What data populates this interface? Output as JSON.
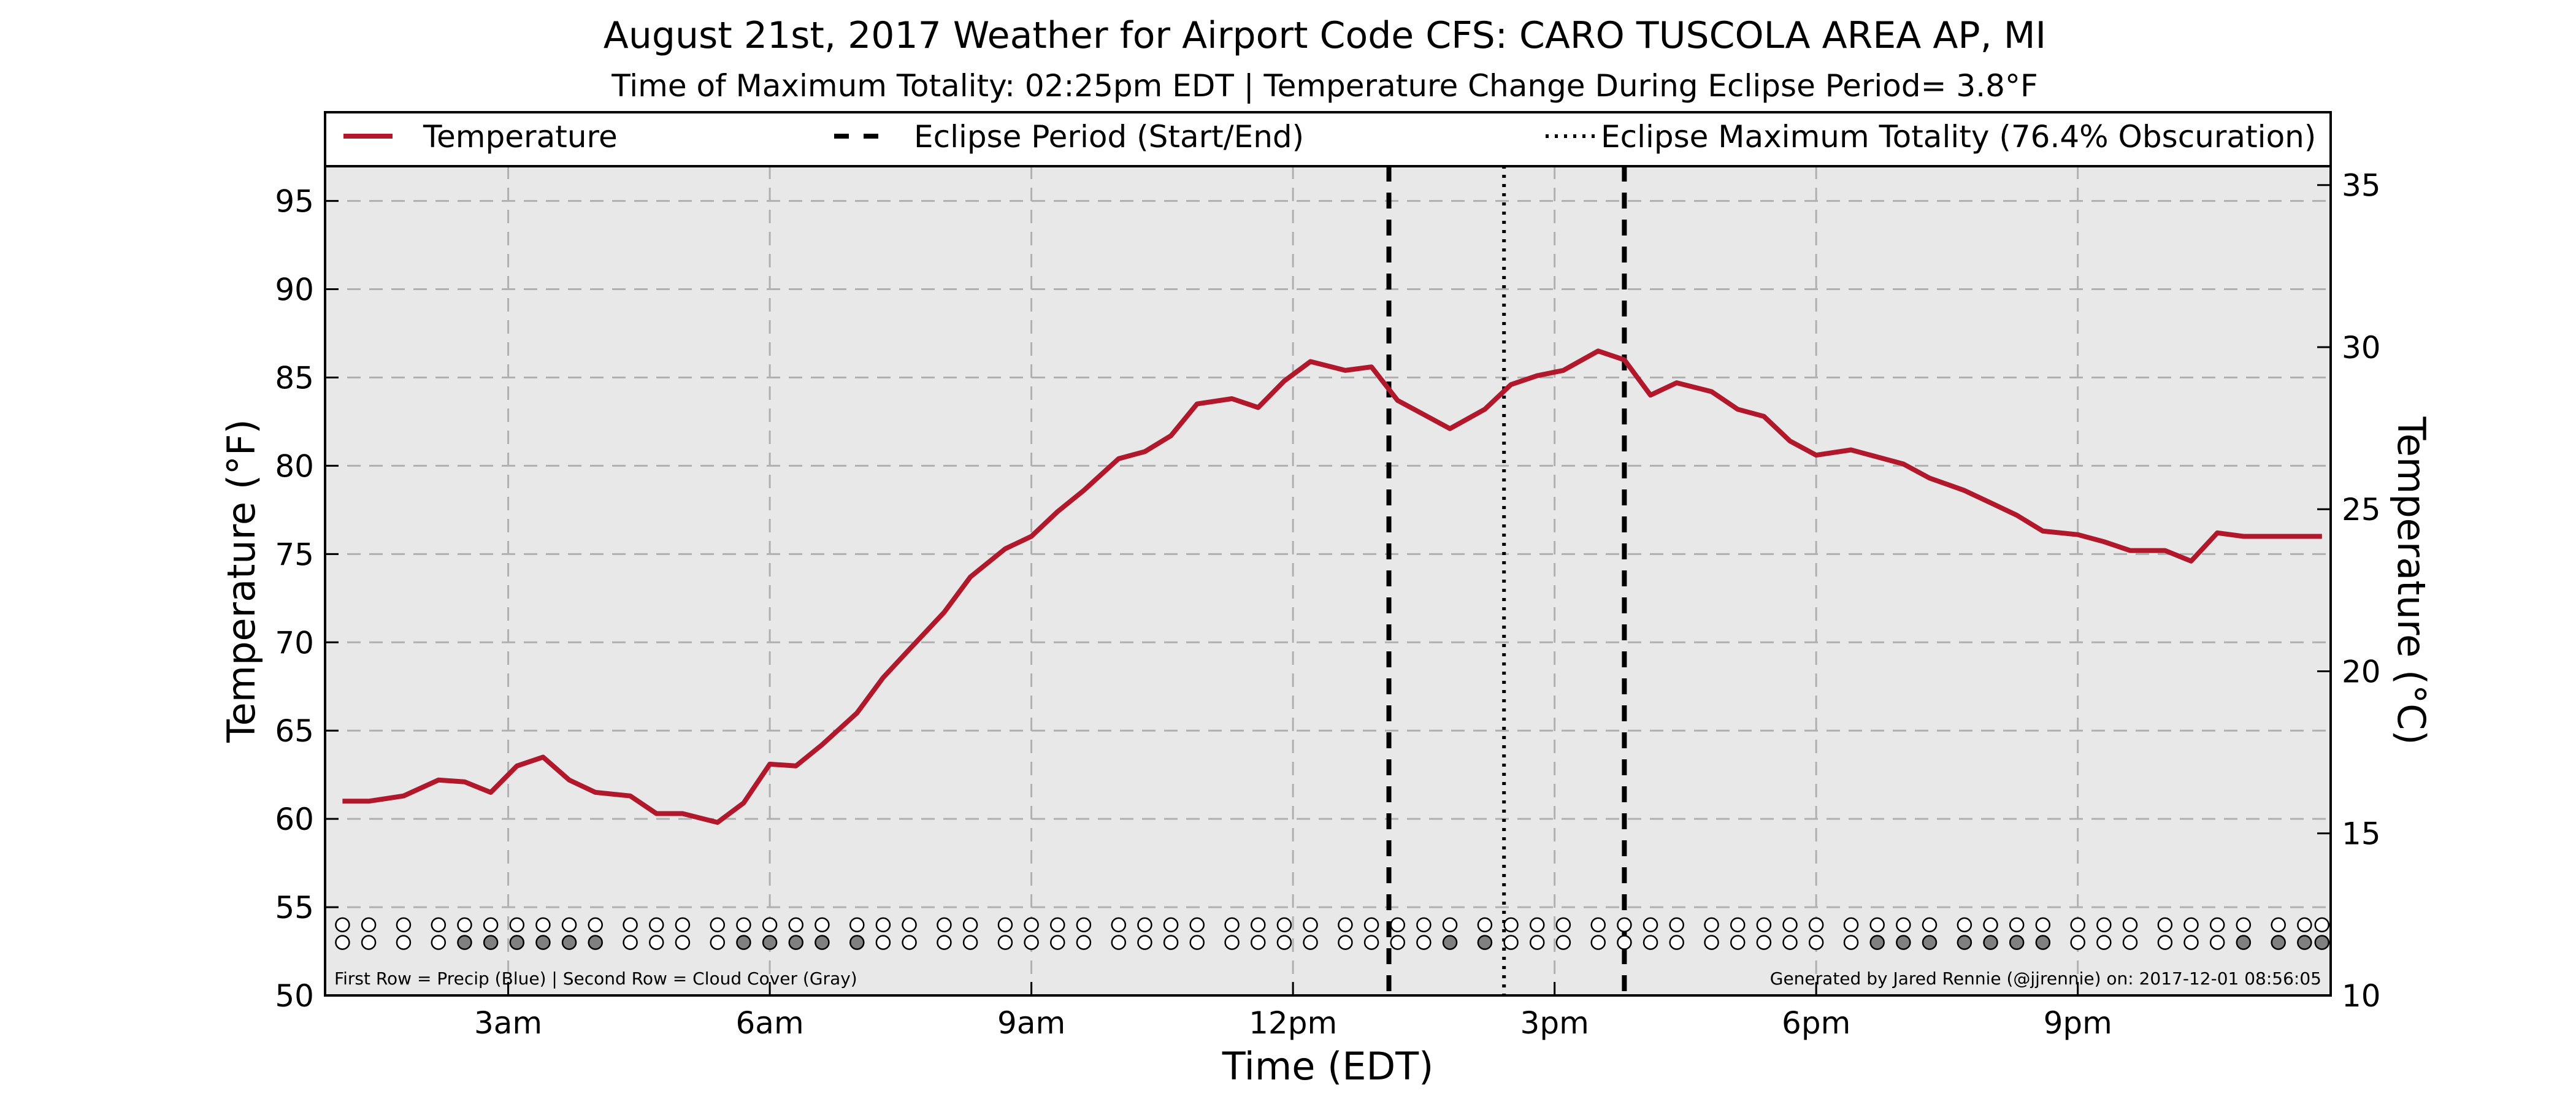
{
  "chart_data": {
    "type": "line",
    "title": "August 21st, 2017 Weather for Airport Code CFS: CARO TUSCOLA AREA AP, MI",
    "subtitle": "Time of Maximum Totality: 02:25pm EDT | Temperature Change During Eclipse Period= 3.8°F",
    "xlabel": "Time (EDT)",
    "ylabel": "Temperature (°F)",
    "y2label": "Temperature (°C)",
    "x_unit": "hours since midnight EDT",
    "xlim": [
      0.9,
      23.9
    ],
    "ylim": [
      50,
      97
    ],
    "y2lim": [
      10,
      35.6
    ],
    "x_ticks": [
      {
        "x": 3,
        "label": "3am"
      },
      {
        "x": 6,
        "label": "6am"
      },
      {
        "x": 9,
        "label": "9am"
      },
      {
        "x": 12,
        "label": "12pm"
      },
      {
        "x": 15,
        "label": "3pm"
      },
      {
        "x": 18,
        "label": "6pm"
      },
      {
        "x": 21,
        "label": "9pm"
      }
    ],
    "y_ticks": [
      50,
      55,
      60,
      65,
      70,
      75,
      80,
      85,
      90,
      95
    ],
    "y2_ticks": [
      10,
      15,
      20,
      25,
      30,
      35
    ],
    "grid": true,
    "legend": {
      "placement": "top",
      "entries": [
        {
          "label": "Temperature",
          "style": "solid",
          "color": "#b2182b"
        },
        {
          "label": "Eclipse Period (Start/End)",
          "style": "dashed",
          "color": "#000000"
        },
        {
          "label": "Eclipse Maximum Totality (76.4% Obscuration)",
          "style": "dotted",
          "color": "#000000"
        }
      ]
    },
    "series": [
      {
        "name": "Temperature",
        "color": "#b2182b",
        "x": [
          1.1,
          1.4,
          1.8,
          2.2,
          2.5,
          2.8,
          3.1,
          3.4,
          3.7,
          4.0,
          4.4,
          4.7,
          5.0,
          5.4,
          5.7,
          6.0,
          6.3,
          6.6,
          7.0,
          7.3,
          7.6,
          8.0,
          8.3,
          8.7,
          9.0,
          9.3,
          9.6,
          10.0,
          10.3,
          10.6,
          10.9,
          11.3,
          11.6,
          11.9,
          12.2,
          12.6,
          12.9,
          13.2,
          13.5,
          13.8,
          14.2,
          14.5,
          14.8,
          15.1,
          15.5,
          15.8,
          16.1,
          16.4,
          16.8,
          17.1,
          17.4,
          17.7,
          18.0,
          18.4,
          18.7,
          19.0,
          19.3,
          19.7,
          20.0,
          20.3,
          20.6,
          21.0,
          21.3,
          21.6,
          22.0,
          22.3,
          22.6,
          22.9,
          23.3,
          23.6,
          23.8
        ],
        "y": [
          61.0,
          61.0,
          61.3,
          62.2,
          62.1,
          61.5,
          63.0,
          63.5,
          62.2,
          61.5,
          61.3,
          60.3,
          60.3,
          59.8,
          60.9,
          63.1,
          63.0,
          64.2,
          66.0,
          68.0,
          69.6,
          71.7,
          73.7,
          75.3,
          76.0,
          77.4,
          78.6,
          80.4,
          80.8,
          81.7,
          83.5,
          83.8,
          83.3,
          84.8,
          85.9,
          85.4,
          85.6,
          83.7,
          82.9,
          82.1,
          83.2,
          84.6,
          85.1,
          85.4,
          86.5,
          86.0,
          84.0,
          84.7,
          84.2,
          83.2,
          82.8,
          81.4,
          80.6,
          80.9,
          80.5,
          80.1,
          79.3,
          78.6,
          77.9,
          77.2,
          76.3,
          76.1,
          75.7,
          75.2,
          75.2,
          74.6,
          76.2,
          76.0,
          76.0,
          76.0,
          76.0
        ]
      }
    ],
    "eclipse_start": 13.1,
    "eclipse_end": 15.8,
    "eclipse_max": 14.42,
    "marker_rows": {
      "precip_y": 54.0,
      "cloud_y": 53.0,
      "x": [
        1.1,
        1.4,
        1.8,
        2.2,
        2.5,
        2.8,
        3.1,
        3.4,
        3.7,
        4.0,
        4.4,
        4.7,
        5.0,
        5.4,
        5.7,
        6.0,
        6.3,
        6.6,
        7.0,
        7.3,
        7.6,
        8.0,
        8.3,
        8.7,
        9.0,
        9.3,
        9.6,
        10.0,
        10.3,
        10.6,
        10.9,
        11.3,
        11.6,
        11.9,
        12.2,
        12.6,
        12.9,
        13.2,
        13.5,
        13.8,
        14.2,
        14.5,
        14.8,
        15.1,
        15.5,
        15.8,
        16.1,
        16.4,
        16.8,
        17.1,
        17.4,
        17.7,
        18.0,
        18.4,
        18.7,
        19.0,
        19.3,
        19.7,
        20.0,
        20.3,
        20.6,
        21.0,
        21.3,
        21.6,
        22.0,
        22.3,
        22.6,
        22.9,
        23.3,
        23.6,
        23.8
      ],
      "cloud_filled": [
        0,
        0,
        0,
        0,
        1,
        1,
        1,
        1,
        1,
        1,
        0,
        0,
        0,
        0,
        1,
        1,
        1,
        1,
        1,
        0,
        0,
        0,
        0,
        0,
        0,
        0,
        0,
        0,
        0,
        0,
        0,
        0,
        0,
        0,
        0,
        0,
        0,
        0,
        0,
        1,
        1,
        0,
        0,
        0,
        0,
        0,
        0,
        0,
        0,
        0,
        0,
        0,
        0,
        0,
        1,
        1,
        1,
        1,
        1,
        1,
        1,
        0,
        0,
        0,
        0,
        0,
        0,
        1,
        1,
        1,
        1
      ],
      "precip_filled": []
    },
    "notes": {
      "left": "First Row = Precip (Blue) | Second Row = Cloud Cover (Gray)",
      "right": "Generated by Jared Rennie (@jjrennie) on: 2017-12-01 08:56:05"
    },
    "colors": {
      "plot_bg": "#e8e8e8",
      "line": "#b2182b",
      "grid": "#b0b0b0",
      "cloud_fill": "#808080"
    }
  }
}
